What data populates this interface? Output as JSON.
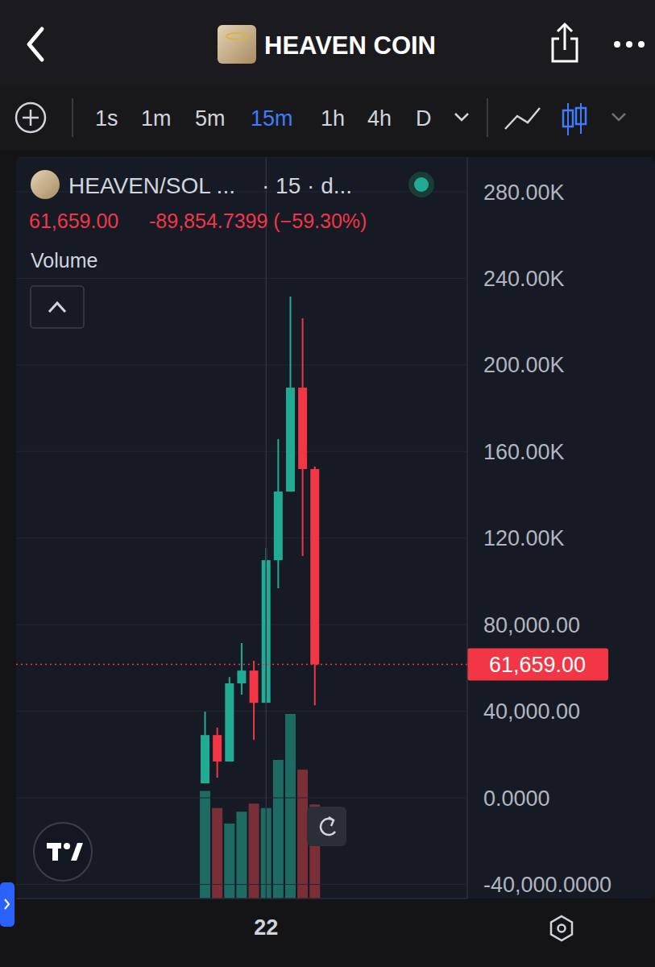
{
  "app": {
    "title": "HEAVEN COIN",
    "timeframes": [
      "1s",
      "1m",
      "5m",
      "15m",
      "1h",
      "4h",
      "D"
    ],
    "active_timeframe": "15m"
  },
  "chart_data": {
    "type": "candlestick",
    "title": "HEAVEN/SOL ...",
    "subtitle": "· 15 · d...",
    "header_values": {
      "price": "61,659.00",
      "change": "-89,854.7399 (−59.30%)"
    },
    "categories": [
      null,
      null,
      null,
      null,
      null,
      null,
      null,
      null,
      null,
      null,
      null,
      null,
      null,
      null,
      null,
      null,
      null,
      null,
      null,
      null,
      "22",
      null,
      null,
      null,
      null,
      null,
      null,
      null,
      null,
      null,
      null,
      null,
      null,
      null,
      null,
      null,
      null
    ],
    "series": [
      {
        "type": "candlestick",
        "open": [
          null,
          null,
          null,
          null,
          null,
          null,
          null,
          null,
          null,
          null,
          null,
          null,
          null,
          null,
          null,
          6700,
          29000,
          16800,
          52900,
          58800,
          43900,
          109800,
          141500,
          189500,
          151900,
          null,
          null,
          null,
          null,
          null,
          null,
          null,
          null,
          null,
          null,
          null,
          null
        ],
        "high": [
          null,
          null,
          null,
          null,
          null,
          null,
          null,
          null,
          null,
          null,
          null,
          null,
          null,
          null,
          null,
          39800,
          32400,
          55800,
          71500,
          63300,
          115400,
          165700,
          231600,
          221500,
          153000,
          null,
          null,
          null,
          null,
          null,
          null,
          null,
          null,
          null,
          null,
          null,
          null
        ],
        "low": [
          null,
          null,
          null,
          null,
          null,
          null,
          null,
          null,
          null,
          null,
          null,
          null,
          null,
          null,
          null,
          6700,
          9300,
          16800,
          47700,
          26800,
          43900,
          96800,
          141500,
          111700,
          42800,
          null,
          null,
          null,
          null,
          null,
          null,
          null,
          null,
          null,
          null,
          null,
          null
        ],
        "close": [
          null,
          null,
          null,
          null,
          null,
          null,
          null,
          null,
          null,
          null,
          null,
          null,
          null,
          null,
          null,
          29000,
          16800,
          52900,
          58800,
          43900,
          109800,
          141500,
          189500,
          151900,
          61659,
          null,
          null,
          null,
          null,
          null,
          null,
          null,
          null,
          null,
          null,
          null,
          null
        ],
        "colors": [
          null,
          null,
          null,
          null,
          null,
          null,
          null,
          null,
          null,
          null,
          null,
          null,
          null,
          null,
          null,
          "#22ab94",
          "#f23645",
          "#22ab94",
          "#22ab94",
          "#f23645",
          "#22ab94",
          "#22ab94",
          "#22ab94",
          "#f23645",
          "#f23645",
          null,
          null,
          null,
          null,
          null,
          null,
          null,
          null,
          null,
          null,
          null,
          null
        ]
      },
      {
        "name": "Volume",
        "type": "bar",
        "axis": "y2",
        "values": [
          null,
          null,
          null,
          null,
          null,
          null,
          null,
          null,
          null,
          null,
          null,
          null,
          null,
          null,
          null,
          14.5,
          12.2,
          10.1,
          11.7,
          12.8,
          12.2,
          18.7,
          24.9,
          17.4,
          12.7,
          null,
          null,
          null,
          null,
          null,
          null,
          null,
          null,
          null,
          null,
          null,
          null
        ],
        "colors": [
          null,
          null,
          null,
          null,
          null,
          null,
          null,
          null,
          null,
          null,
          null,
          null,
          null,
          null,
          null,
          "#1d6b62",
          "#7a2f37",
          "#1d6b62",
          "#1d6b62",
          "#7a2f37",
          "#1d6b62",
          "#1d6b62",
          "#1d6b62",
          "#7a2f37",
          "#7a2f37",
          null,
          null,
          null,
          null,
          null,
          null,
          null,
          null,
          null,
          null,
          null,
          null
        ]
      }
    ],
    "ylim": [
      -46500,
      296000
    ],
    "yticks": [
      {
        "value": -40000,
        "label": "-40,000.0000"
      },
      {
        "value": 0,
        "label": "0.0000"
      },
      {
        "value": 40000,
        "label": "40,000.00"
      },
      {
        "value": 80000,
        "label": "80,000.00"
      },
      {
        "value": 120000,
        "label": "120.00K"
      },
      {
        "value": 160000,
        "label": "160.00K"
      },
      {
        "value": 200000,
        "label": "200.00K"
      },
      {
        "value": 240000,
        "label": "240.00K"
      },
      {
        "value": 280000,
        "label": "280.00K"
      }
    ],
    "y2lim": [
      0,
      100
    ],
    "y2ticks": [],
    "grid": true,
    "price_line": {
      "value": 61659,
      "label": "61,659.00",
      "color": "#f23645"
    }
  }
}
